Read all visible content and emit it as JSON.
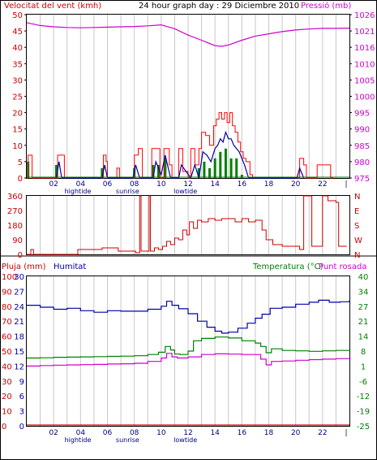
{
  "header": {
    "wind_label": "Velocitat del vent (kmh)",
    "title": "24 hour graph day : 29 Diciembre 2010",
    "pressure_label": "Pressió (mb)"
  },
  "x_axis": {
    "ticks": [
      "02",
      "04",
      "06",
      "08",
      "10",
      "12",
      "14",
      "16",
      "18",
      "20",
      "22"
    ],
    "end_tick": "|",
    "events": [
      "hightide",
      "sunrise",
      "lowtide"
    ]
  },
  "middle_labels": {
    "rain_label": "Pluja (mm)",
    "humidity_label": "Humitat",
    "temperature_label": "Temperatura (°C)",
    "dewpoint_label": "Punt rosada"
  },
  "colors": {
    "wind_gust": "#ff0000",
    "wind_speed": "#0000aa",
    "wind_avg": "#008000",
    "pressure": "#d000d0",
    "direction": "#cc0000",
    "humidity": "#0000aa",
    "temperature": "#008000",
    "dewpoint": "#d000d0",
    "rain": "#cc0000",
    "grid": "#c8c8c8"
  },
  "chart_data": [
    {
      "type": "line",
      "id": "wind-pressure",
      "x_unit": "hour",
      "xlim": [
        0,
        24
      ],
      "left_axis": {
        "label": "Velocitat del vent (kmh)",
        "ylim": [
          0,
          50
        ],
        "ticks": [
          0,
          5,
          10,
          15,
          20,
          25,
          30,
          35,
          40,
          45,
          50
        ]
      },
      "right_axis": {
        "label": "Pressió (mb)",
        "ylim": [
          975,
          1026
        ],
        "ticks": [
          975,
          980,
          985,
          990,
          995,
          1000,
          1005,
          1010,
          1016,
          1021,
          1026
        ]
      },
      "series": [
        {
          "name": "gust",
          "axis": "left",
          "x": [
            0,
            0.1,
            0.3,
            0.4,
            2.1,
            2.3,
            2.6,
            2.8,
            5.5,
            5.7,
            5.9,
            6.0,
            6.5,
            6.7,
            6.9,
            7.8,
            8.0,
            8.3,
            8.6,
            9.1,
            9.3,
            9.6,
            9.9,
            10.2,
            10.6,
            10.8,
            11.0,
            11.3,
            11.6,
            12.0,
            12.2,
            12.5,
            12.8,
            13.0,
            13.3,
            13.6,
            13.9,
            14.1,
            14.3,
            14.5,
            14.7,
            14.9,
            15.1,
            15.3,
            15.5,
            15.7,
            15.9,
            16.1,
            16.3,
            16.6,
            16.8,
            20.1,
            20.3,
            20.6,
            20.8,
            21.4,
            21.6,
            22.6,
            22.8
          ],
          "y": [
            0,
            7,
            7,
            0,
            0,
            7,
            7,
            0,
            0,
            7,
            5,
            0,
            0,
            3,
            0,
            0,
            7,
            9,
            0,
            0,
            9,
            9,
            0,
            9,
            4,
            0,
            0,
            9,
            2,
            0,
            9,
            4,
            9,
            14,
            13,
            10,
            16,
            18,
            20,
            18,
            20,
            17,
            20,
            16,
            14,
            11,
            8,
            6,
            5,
            1,
            0,
            0,
            6,
            4,
            0,
            0,
            4,
            0,
            0
          ]
        },
        {
          "name": "speed",
          "axis": "left",
          "x": [
            2.2,
            2.4,
            2.6,
            5.6,
            5.8,
            6.0,
            7.9,
            8.1,
            8.4,
            9.4,
            9.6,
            10.0,
            10.3,
            10.7,
            11.3,
            11.5,
            12.2,
            12.5,
            12.8,
            13.1,
            13.4,
            13.7,
            14.0,
            14.2,
            14.4,
            14.6,
            14.8,
            15.0,
            15.2,
            15.4,
            15.6,
            15.8,
            16.0,
            16.2,
            16.5,
            20.1,
            20.3,
            20.6
          ],
          "y": [
            0,
            5,
            0,
            0,
            4,
            0,
            0,
            4,
            0,
            0,
            5,
            1,
            7,
            0,
            0,
            4,
            0,
            4,
            0,
            8,
            7,
            5,
            9,
            10,
            12,
            11,
            14,
            12,
            12,
            10,
            9,
            8,
            6,
            4,
            0,
            0,
            3,
            0
          ]
        },
        {
          "name": "average",
          "axis": "left",
          "x": [
            0.1,
            0.3,
            2.2,
            2.4,
            5.6,
            5.8,
            8.0,
            8.3,
            9.4,
            9.8,
            10.3,
            10.6,
            12.8,
            13.2,
            13.6,
            14.0,
            14.4,
            14.8,
            15.2,
            15.6,
            16.0
          ],
          "y": [
            5,
            0,
            4,
            0,
            3,
            0,
            3,
            0,
            4,
            4,
            6,
            0,
            3,
            5,
            3,
            6,
            8,
            9,
            6,
            6,
            1
          ]
        },
        {
          "name": "pressure",
          "axis": "right",
          "x": [
            0,
            1,
            2,
            3,
            4,
            5,
            6,
            7,
            8,
            9,
            10,
            11,
            12,
            13,
            14,
            14.5,
            15,
            16,
            17,
            18,
            19,
            20,
            21,
            22,
            23,
            24
          ],
          "y": [
            1023.5,
            1022.6,
            1022.2,
            1022.0,
            1021.9,
            1022.0,
            1022.1,
            1022.2,
            1022.3,
            1022.5,
            1022.8,
            1021.6,
            1019.6,
            1018.0,
            1016.3,
            1016.1,
            1016.5,
            1018.0,
            1019.3,
            1020.0,
            1020.7,
            1021.2,
            1021.5,
            1021.7,
            1021.7,
            1021.8
          ]
        }
      ]
    },
    {
      "type": "line",
      "id": "wind-direction",
      "xlim": [
        0,
        24
      ],
      "left_axis": {
        "ylim": [
          0,
          360
        ],
        "ticks": [
          0,
          90,
          180,
          270,
          360
        ]
      },
      "right_axis": {
        "ticks": [
          "N",
          "E",
          "S",
          "W",
          "N"
        ]
      },
      "series": [
        {
          "name": "direction",
          "x": [
            0,
            0.3,
            0.5,
            3.5,
            3.8,
            5.3,
            5.6,
            6.5,
            6.8,
            7.8,
            8.1,
            8.3,
            8.4,
            8.45,
            8.5,
            9.0,
            9.1,
            9.15,
            9.2,
            9.5,
            9.8,
            10.1,
            10.4,
            10.7,
            11.0,
            11.3,
            11.6,
            11.9,
            12.1,
            12.4,
            12.7,
            13.0,
            13.5,
            14.0,
            14.5,
            15.0,
            15.5,
            16.0,
            16.5,
            17.0,
            17.5,
            17.8,
            18.3,
            19.0,
            19.6,
            20.0,
            20.3,
            20.5,
            20.6,
            21.0,
            21.2,
            21.8,
            22.0,
            22.4,
            22.6,
            23.0,
            23.2,
            23.8
          ],
          "y": [
            0,
            30,
            0,
            0,
            30,
            30,
            40,
            40,
            20,
            20,
            10,
            10,
            360,
            360,
            20,
            20,
            360,
            360,
            20,
            40,
            30,
            50,
            80,
            60,
            100,
            90,
            150,
            120,
            200,
            160,
            210,
            200,
            220,
            210,
            220,
            220,
            200,
            220,
            200,
            210,
            150,
            90,
            60,
            50,
            50,
            50,
            30,
            30,
            360,
            360,
            50,
            50,
            360,
            330,
            330,
            320,
            50,
            50
          ]
        }
      ]
    },
    {
      "type": "line",
      "id": "temperature-humidity",
      "xlim": [
        0,
        24
      ],
      "axes": [
        {
          "name": "rain",
          "label": "Pluja (mm)",
          "ylim": [
            0,
            100
          ],
          "ticks": [
            0,
            10,
            20,
            30,
            40,
            50,
            60,
            70,
            80,
            90,
            100
          ]
        },
        {
          "name": "humidity",
          "label": "Humitat",
          "ylim": [
            0,
            30
          ],
          "ticks": [
            0,
            3,
            6,
            9,
            12,
            15,
            18,
            21,
            24,
            27,
            30
          ]
        },
        {
          "name": "temperature",
          "label": "Temperatura (°C)",
          "ylim": [
            -25,
            40
          ],
          "ticks": [
            -25,
            -19,
            -12,
            -6,
            1,
            8,
            14,
            21,
            27,
            34,
            40
          ]
        }
      ],
      "series": [
        {
          "name": "humidity",
          "axis": "humidity",
          "x": [
            0,
            1,
            2,
            3,
            4,
            5,
            6,
            7,
            8,
            9,
            10,
            10.4,
            10.8,
            11.3,
            12,
            12.7,
            13.4,
            14,
            14.5,
            15,
            15.7,
            16.4,
            17,
            17.5,
            18.1,
            19,
            20,
            21,
            21.7,
            22.5,
            23.3,
            24
          ],
          "y": [
            24.2,
            23.8,
            23.4,
            23.6,
            23.1,
            22.8,
            23.1,
            23.0,
            23.0,
            23.4,
            24.0,
            25.0,
            24.2,
            23.5,
            22.5,
            21.0,
            19.8,
            19.0,
            18.6,
            18.8,
            19.6,
            20.6,
            21.6,
            22.4,
            23.6,
            23.8,
            24.4,
            24.8,
            25.2,
            24.8,
            24.9,
            25.2
          ]
        },
        {
          "name": "temperature",
          "axis": "temperature",
          "x": [
            0,
            1,
            2,
            3,
            4,
            5,
            6,
            7,
            8,
            9,
            9.8,
            10.3,
            10.7,
            11.0,
            11.4,
            12.0,
            12.4,
            13.0,
            14.0,
            15.0,
            16.0,
            17.0,
            17.4,
            17.8,
            18.2,
            19.0,
            20.0,
            21.0,
            22.0,
            23.0,
            24.0
          ],
          "y": [
            4.5,
            4.6,
            4.8,
            4.9,
            5.0,
            5.1,
            5.2,
            5.3,
            5.5,
            6.0,
            7.0,
            9.5,
            8.0,
            6.2,
            6.0,
            7.5,
            12.0,
            13.0,
            13.6,
            13.2,
            12.0,
            11.0,
            9.5,
            6.8,
            8.5,
            7.8,
            7.6,
            7.4,
            7.6,
            7.8,
            7.9
          ]
        },
        {
          "name": "dewpoint",
          "axis": "temperature",
          "x": [
            0,
            1,
            2,
            3,
            4,
            5,
            6,
            7,
            8,
            9,
            10,
            10.4,
            10.8,
            11.2,
            12.0,
            13.0,
            14.0,
            15.0,
            16.0,
            17.0,
            17.4,
            17.8,
            18.2,
            19.0,
            20.0,
            21.0,
            22.0,
            23.0,
            24.0
          ],
          "y": [
            1.0,
            1.2,
            1.4,
            1.5,
            1.6,
            1.7,
            1.9,
            2.0,
            2.2,
            3.0,
            4.5,
            6.5,
            5.0,
            4.5,
            5.0,
            6.0,
            6.3,
            6.2,
            6.0,
            6.0,
            4.0,
            1.5,
            3.0,
            3.2,
            3.5,
            3.8,
            4.0,
            4.2,
            4.3
          ]
        },
        {
          "name": "rain",
          "axis": "rain",
          "x": [
            0,
            24
          ],
          "y": [
            0,
            0
          ]
        }
      ]
    }
  ]
}
